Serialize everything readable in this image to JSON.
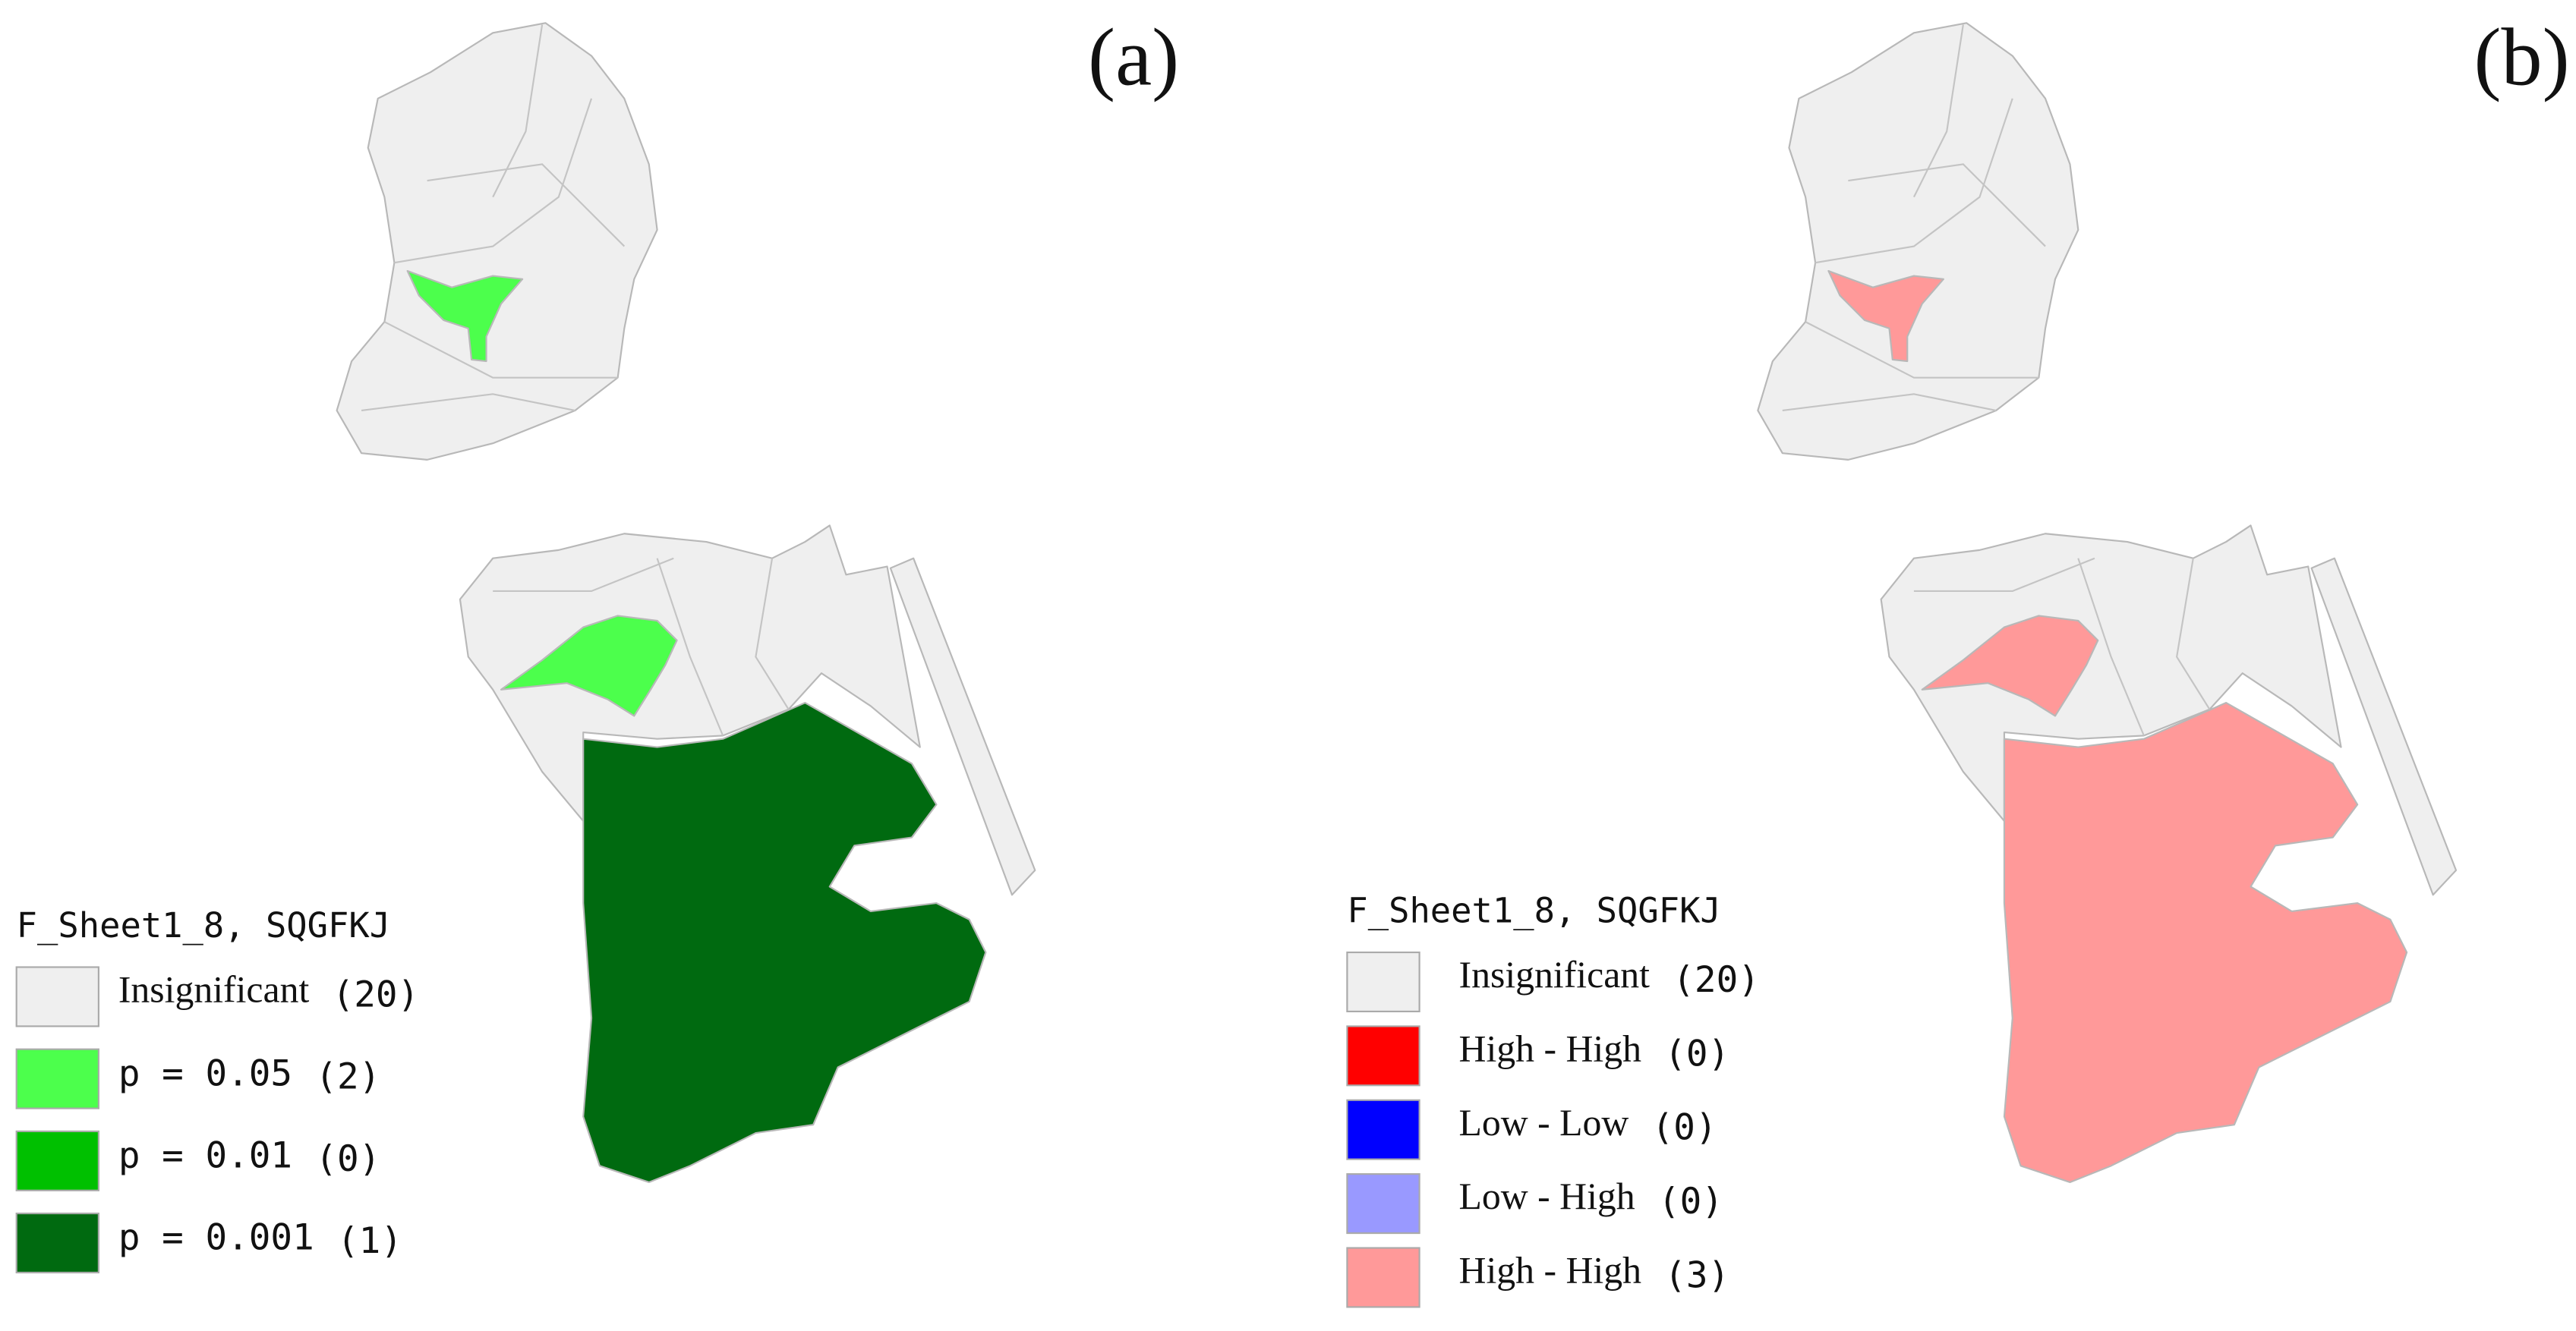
{
  "panels": [
    {
      "label": "(a)",
      "legend": {
        "title": "F_Sheet1_8, SQGFKJ",
        "items": [
          {
            "label": "Insignificant",
            "count": "(20)",
            "color": "#efefef"
          },
          {
            "label": "p = 0.05",
            "count": "(2)",
            "color": "#4cff4c"
          },
          {
            "label": "p = 0.01",
            "count": "(0)",
            "color": "#00c000"
          },
          {
            "label": "p = 0.001",
            "count": "(1)",
            "color": "#006a10"
          }
        ]
      }
    },
    {
      "label": "(b)",
      "legend": {
        "title": "F_Sheet1_8, SQGFKJ",
        "items": [
          {
            "label": "Insignificant",
            "count": "(20)",
            "color": "#efefef"
          },
          {
            "label": "High - High",
            "count": "(0)",
            "color": "#ff0000"
          },
          {
            "label": "Low - Low",
            "count": "(0)",
            "color": "#0000ff"
          },
          {
            "label": "Low - High",
            "count": "(0)",
            "color": "#9999ff"
          },
          {
            "label": "High - High",
            "count": "(3)",
            "color": "#ff9999"
          }
        ]
      }
    }
  ]
}
